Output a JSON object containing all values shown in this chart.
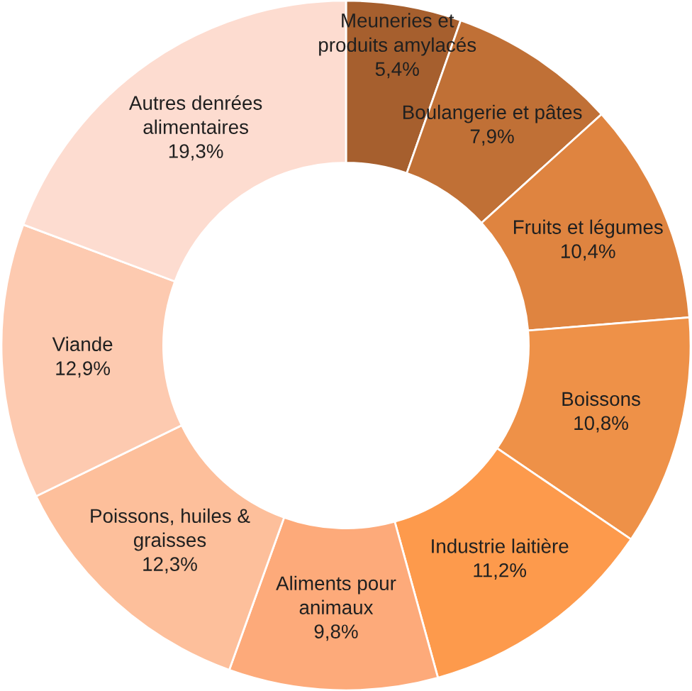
{
  "chart_data": {
    "type": "donut",
    "categories": [
      "Meuneries et\nproduits amylacés",
      "Boulangerie et pâtes",
      "Fruits et légumes",
      "Boissons",
      "Industrie laitière",
      "Aliments pour\nanimaux",
      "Poissons, huiles &\ngraisses",
      "Viande",
      "Autres denrées\nalimentaires"
    ],
    "values": [
      5.4,
      7.9,
      10.4,
      10.8,
      11.2,
      9.8,
      12.3,
      12.9,
      19.3
    ],
    "value_labels": [
      "5,4%",
      "7,9%",
      "10,4%",
      "10,8%",
      "11,2%",
      "9,8%",
      "12,3%",
      "12,9%",
      "19,3%"
    ],
    "colors": [
      "#a65f2e",
      "#c07036",
      "#df8440",
      "#ee9148",
      "#fd9a4c",
      "#fdaa7a",
      "#fdbf9b",
      "#fdcab0",
      "#fddcd0"
    ],
    "legend": false
  }
}
